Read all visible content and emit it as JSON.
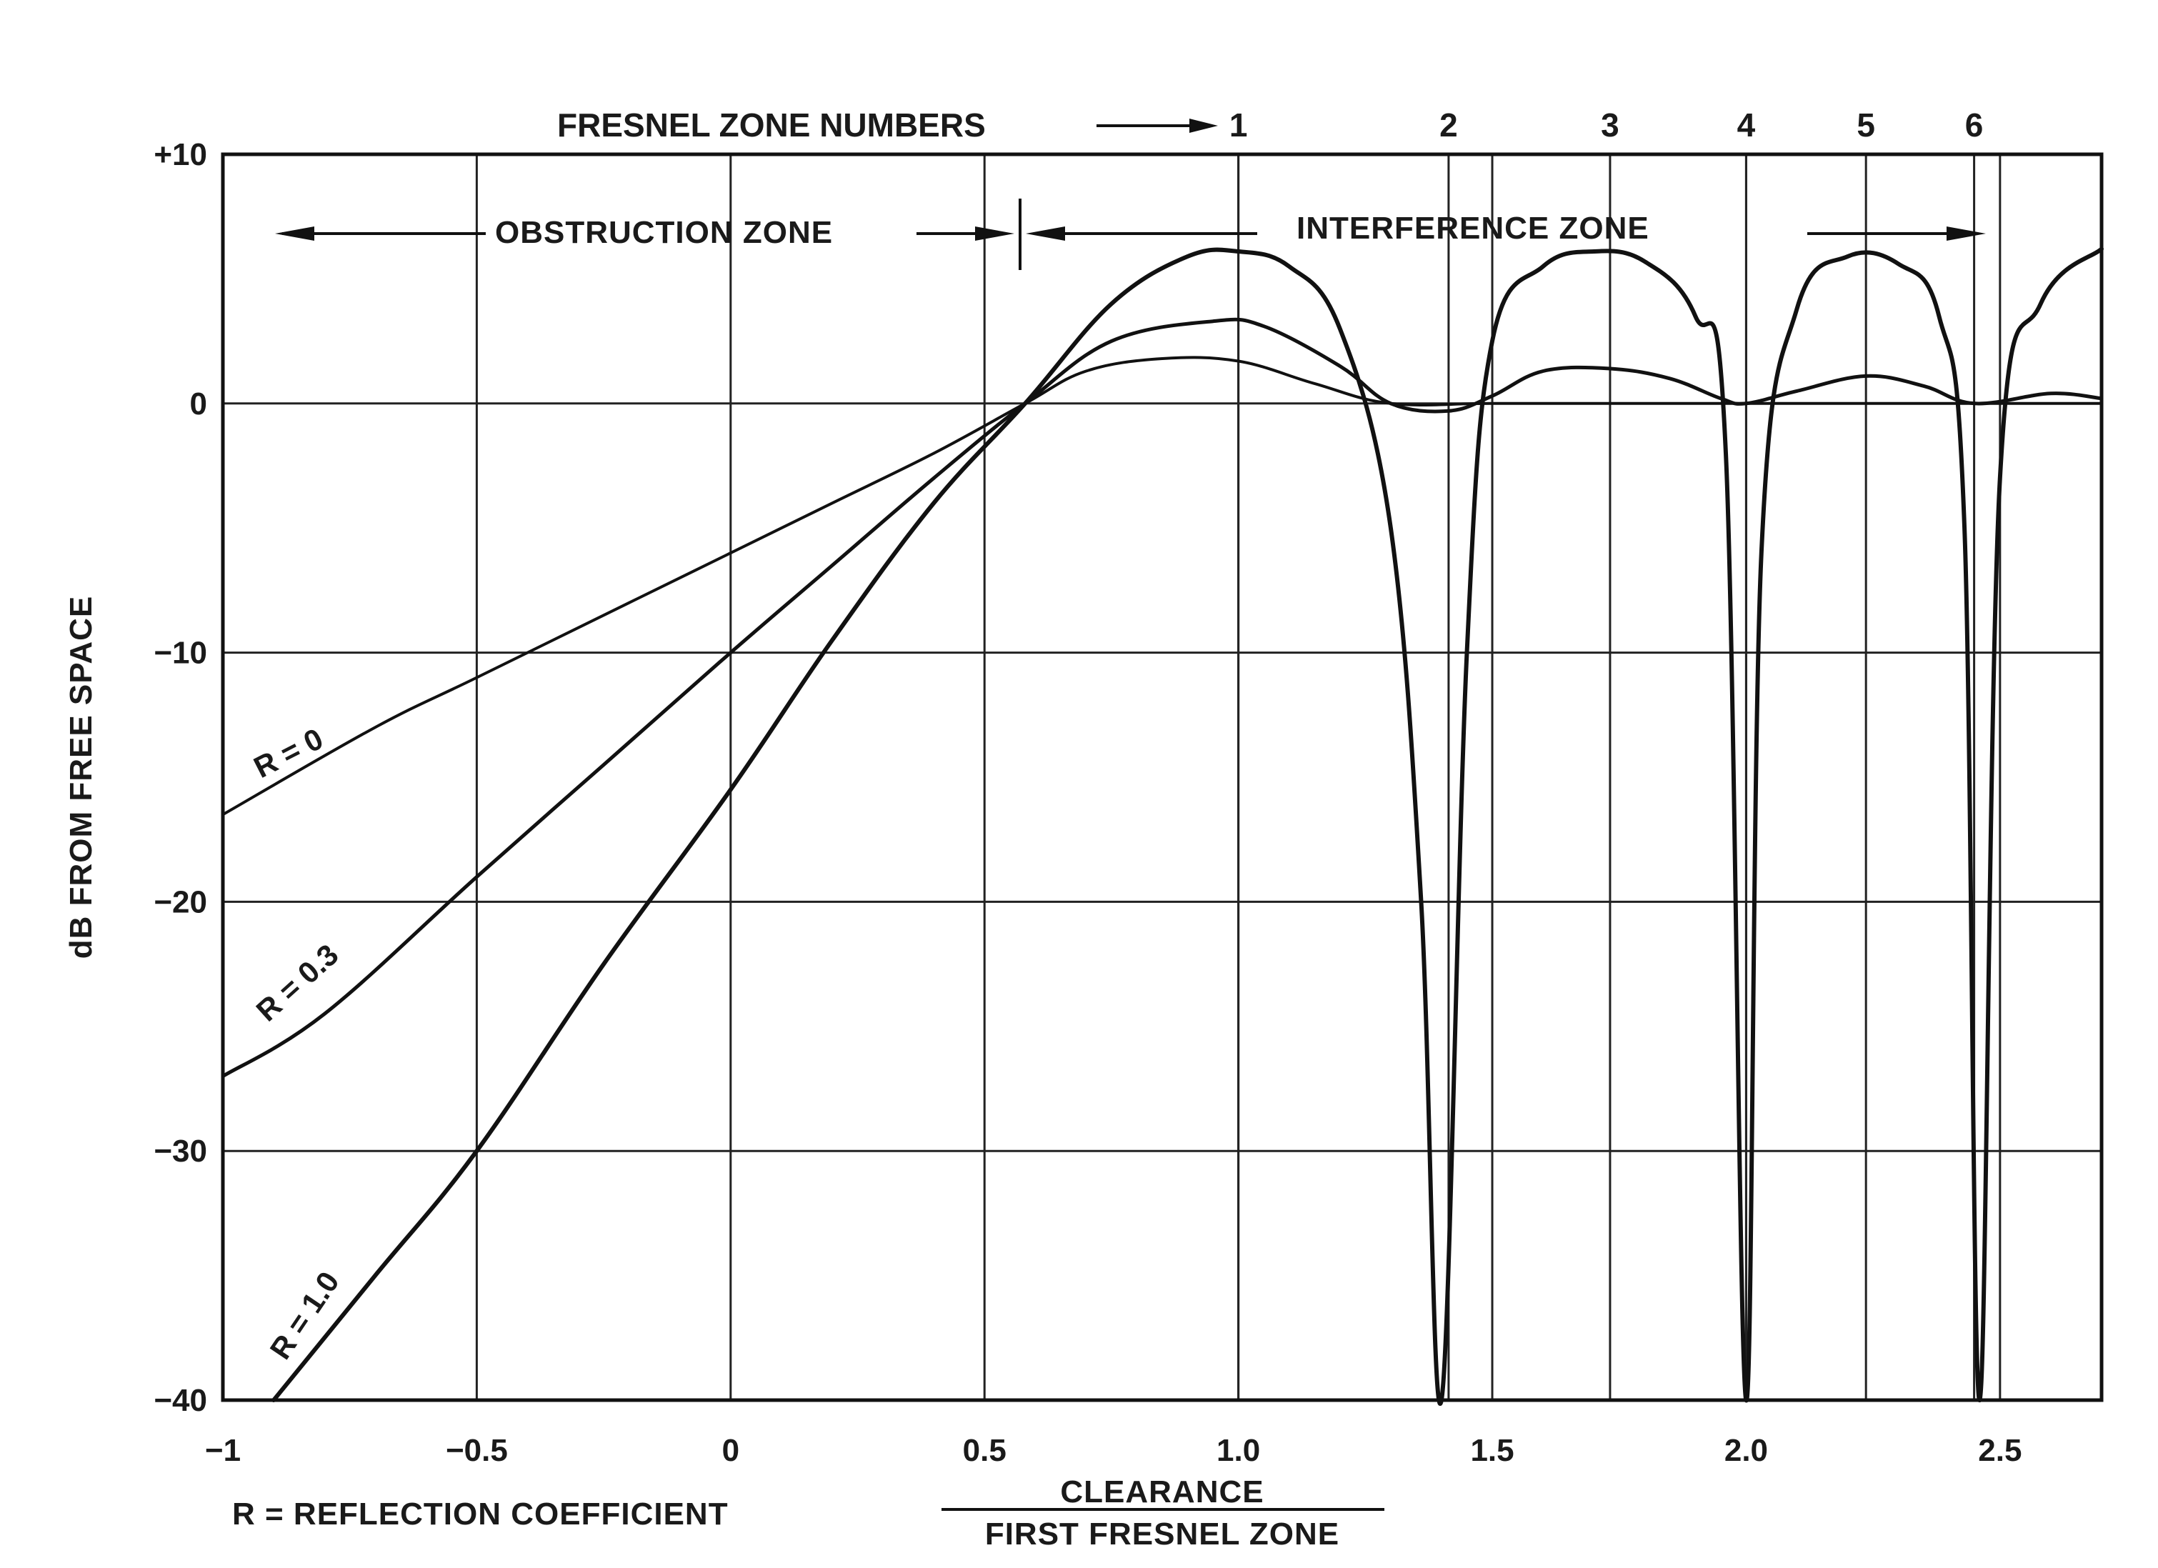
{
  "chart_data": {
    "type": "line",
    "title": "",
    "ylabel": "dB FROM FREE SPACE",
    "xlabel_numerator": "CLEARANCE",
    "xlabel_denominator": "FIRST FRESNEL ZONE",
    "legend_note": "R = REFLECTION COEFFICIENT",
    "xlim": [
      -1.0,
      2.7
    ],
    "ylim": [
      -40,
      10
    ],
    "x_ticks": [
      {
        "value": -1.0,
        "label": "−1"
      },
      {
        "value": -0.5,
        "label": "−0.5"
      },
      {
        "value": 0.0,
        "label": "0"
      },
      {
        "value": 0.5,
        "label": "0.5"
      },
      {
        "value": 1.0,
        "label": "1.0"
      },
      {
        "value": 1.5,
        "label": "1.5"
      },
      {
        "value": 2.0,
        "label": "2.0"
      },
      {
        "value": 2.5,
        "label": "2.5"
      }
    ],
    "y_ticks": [
      {
        "value": 10,
        "label": "+10"
      },
      {
        "value": 0,
        "label": "0"
      },
      {
        "value": -10,
        "label": "−10"
      },
      {
        "value": -20,
        "label": "−20"
      },
      {
        "value": -30,
        "label": "−30"
      },
      {
        "value": -40,
        "label": "−40"
      }
    ],
    "grid": true,
    "fresnel_zone_title": "FRESNEL ZONE NUMBERS",
    "fresnel_zones": [
      {
        "label": "1",
        "x": 1.0
      },
      {
        "label": "2",
        "x": 1.414
      },
      {
        "label": "3",
        "x": 1.732
      },
      {
        "label": "4",
        "x": 2.0
      },
      {
        "label": "5",
        "x": 2.236
      },
      {
        "label": "6",
        "x": 2.449
      }
    ],
    "zones": [
      {
        "label": "OBSTRUCTION ZONE",
        "x_start": -0.9,
        "x_end": 0.58
      },
      {
        "label": "INTERFERENCE ZONE",
        "x_start": 0.58,
        "x_end": 2.45
      }
    ],
    "zone_boundary_x": 0.58,
    "series": [
      {
        "name": "R = 0",
        "style": "solid",
        "color": "#111111",
        "points": [
          [
            -1.0,
            -16.5
          ],
          [
            -0.7,
            -13.0
          ],
          [
            -0.5,
            -11.0
          ],
          [
            -0.2,
            -8.0
          ],
          [
            0.0,
            -6.0
          ],
          [
            0.2,
            -4.0
          ],
          [
            0.4,
            -2.0
          ],
          [
            0.58,
            0.0
          ],
          [
            0.7,
            1.3
          ],
          [
            0.85,
            1.8
          ],
          [
            1.0,
            1.7
          ],
          [
            1.15,
            0.8
          ],
          [
            1.3,
            0.0
          ],
          [
            1.5,
            0.0
          ],
          [
            1.8,
            0.0
          ],
          [
            2.0,
            0.0
          ],
          [
            2.3,
            0.0
          ],
          [
            2.5,
            0.0
          ],
          [
            2.7,
            0.0
          ]
        ]
      },
      {
        "name": "R = 0.3",
        "style": "solid",
        "color": "#111111",
        "points": [
          [
            -1.0,
            -27.0
          ],
          [
            -0.8,
            -24.5
          ],
          [
            -0.5,
            -19.0
          ],
          [
            -0.25,
            -14.5
          ],
          [
            0.0,
            -10.0
          ],
          [
            0.2,
            -6.5
          ],
          [
            0.4,
            -3.0
          ],
          [
            0.58,
            0.0
          ],
          [
            0.75,
            2.5
          ],
          [
            0.95,
            3.3
          ],
          [
            1.05,
            3.1
          ],
          [
            1.2,
            1.5
          ],
          [
            1.3,
            0.0
          ],
          [
            1.414,
            -0.3
          ],
          [
            1.5,
            0.3
          ],
          [
            1.6,
            1.3
          ],
          [
            1.732,
            1.4
          ],
          [
            1.85,
            1.0
          ],
          [
            1.95,
            0.2
          ],
          [
            2.0,
            0.0
          ],
          [
            2.1,
            0.5
          ],
          [
            2.236,
            1.1
          ],
          [
            2.35,
            0.7
          ],
          [
            2.45,
            0.0
          ],
          [
            2.6,
            0.4
          ],
          [
            2.7,
            0.2
          ]
        ]
      },
      {
        "name": "R = 1.0",
        "style": "solid",
        "color": "#111111",
        "points": [
          [
            -0.9,
            -40.0
          ],
          [
            -0.7,
            -35.0
          ],
          [
            -0.5,
            -30.0
          ],
          [
            -0.25,
            -22.5
          ],
          [
            0.0,
            -15.5
          ],
          [
            0.2,
            -9.5
          ],
          [
            0.4,
            -4.0
          ],
          [
            0.58,
            0.0
          ],
          [
            0.75,
            4.0
          ],
          [
            0.9,
            5.9
          ],
          [
            1.0,
            6.1
          ],
          [
            1.1,
            5.5
          ],
          [
            1.2,
            3.0
          ],
          [
            1.3,
            -5.0
          ],
          [
            1.36,
            -20.0
          ],
          [
            1.4,
            -40.0
          ],
          [
            1.45,
            -10.0
          ],
          [
            1.5,
            2.5
          ],
          [
            1.6,
            5.5
          ],
          [
            1.7,
            6.1
          ],
          [
            1.8,
            5.7
          ],
          [
            1.9,
            3.5
          ],
          [
            1.96,
            -2.0
          ],
          [
            2.0,
            -40.0
          ],
          [
            2.03,
            -6.0
          ],
          [
            2.1,
            3.8
          ],
          [
            2.2,
            5.9
          ],
          [
            2.3,
            5.6
          ],
          [
            2.38,
            3.5
          ],
          [
            2.43,
            -5.0
          ],
          [
            2.46,
            -40.0
          ],
          [
            2.5,
            -3.0
          ],
          [
            2.58,
            4.0
          ],
          [
            2.7,
            6.2
          ]
        ]
      }
    ]
  },
  "text": {
    "ylabel": "dB FROM FREE SPACE",
    "fresnel_title": "FRESNEL ZONE NUMBERS",
    "obstruction_zone": "OBSTRUCTION ZONE",
    "interference_zone": "INTERFERENCE ZONE",
    "xlabel_numerator": "CLEARANCE",
    "xlabel_denominator": "FIRST FRESNEL ZONE",
    "legend_note": "R = REFLECTION COEFFICIENT",
    "label_r0": "R = 0",
    "label_r03": "R = 0.3",
    "label_r1": "R = 1.0"
  }
}
